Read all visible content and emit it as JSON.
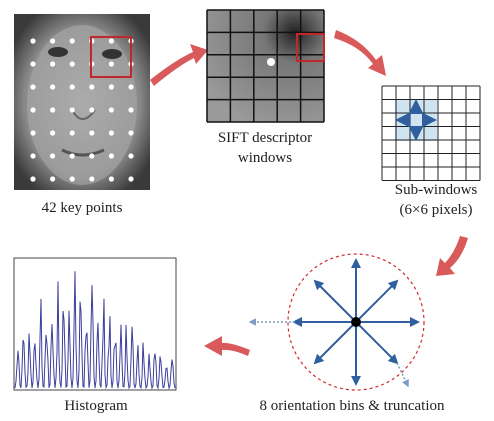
{
  "figure": {
    "keypoints_label": "42 key points",
    "sift_label": [
      "SIFT descriptor",
      "windows"
    ],
    "subwindow_label": [
      "Sub-windows",
      "(6×6 pixels)"
    ],
    "orientation_label": "8 orientation bins & truncation",
    "histogram_label": "Histogram"
  }
}
